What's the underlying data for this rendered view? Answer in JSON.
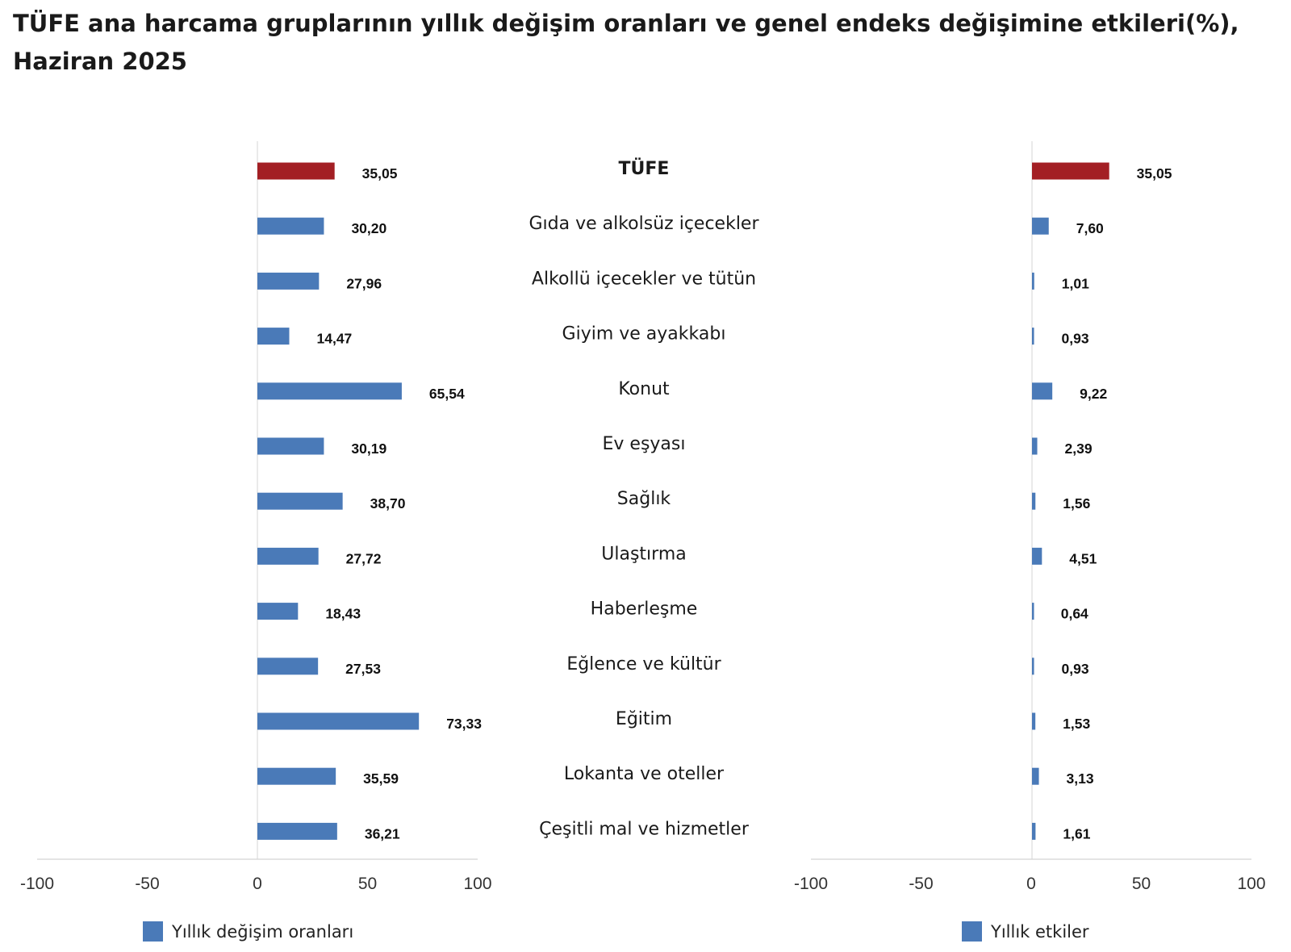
{
  "title": "TÜFE ana harcama gruplarının yıllık değişim oranları ve genel endeks değişimine etkileri(%), Haziran 2025",
  "colors": {
    "total": "#a31f24",
    "series": "#4a7ab8",
    "axis": "#d4d4d4"
  },
  "chart_data": [
    {
      "type": "bar",
      "orientation": "horizontal",
      "categories": [
        "TÜFE",
        "Gıda ve alkolsüz içecekler",
        "Alkollü içecekler ve tütün",
        "Giyim ve ayakkabı",
        "Konut",
        "Ev eşyası",
        "Sağlık",
        "Ulaştırma",
        "Haberleşme",
        "Eğlence ve kültür",
        "Eğitim",
        "Lokanta ve oteller",
        "Çeşitli mal ve hizmetler"
      ],
      "series": [
        {
          "name": "Yıllık değişim oranları",
          "values": [
            35.05,
            30.2,
            27.96,
            14.47,
            65.54,
            30.19,
            38.7,
            27.72,
            18.43,
            27.53,
            73.33,
            35.59,
            36.21
          ],
          "labels": [
            "35,05",
            "30,20",
            "27,96",
            "14,47",
            "65,54",
            "30,19",
            "38,70",
            "27,72",
            "18,43",
            "27,53",
            "73,33",
            "35,59",
            "36,21"
          ]
        }
      ],
      "highlight_index": 0,
      "xlim": [
        -100,
        100
      ],
      "ticks": [
        "-100",
        "-50",
        "0",
        "50",
        "100"
      ],
      "legend_position": "bottom"
    },
    {
      "type": "bar",
      "orientation": "horizontal",
      "categories": [
        "TÜFE",
        "Gıda ve alkolsüz içecekler",
        "Alkollü içecekler ve tütün",
        "Giyim ve ayakkabı",
        "Konut",
        "Ev eşyası",
        "Sağlık",
        "Ulaştırma",
        "Haberleşme",
        "Eğlence ve kültür",
        "Eğitim",
        "Lokanta ve oteller",
        "Çeşitli mal ve hizmetler"
      ],
      "series": [
        {
          "name": "Yıllık etkiler",
          "values": [
            35.05,
            7.6,
            1.01,
            0.93,
            9.22,
            2.39,
            1.56,
            4.51,
            0.64,
            0.93,
            1.53,
            3.13,
            1.61
          ],
          "labels": [
            "35,05",
            "7,60",
            "1,01",
            "0,93",
            "9,22",
            "2,39",
            "1,56",
            "4,51",
            "0,64",
            "0,93",
            "1,53",
            "3,13",
            "1,61"
          ]
        }
      ],
      "highlight_index": 0,
      "xlim": [
        -100,
        100
      ],
      "ticks": [
        "-100",
        "-50",
        "0",
        "50",
        "100"
      ],
      "legend_position": "bottom"
    }
  ]
}
